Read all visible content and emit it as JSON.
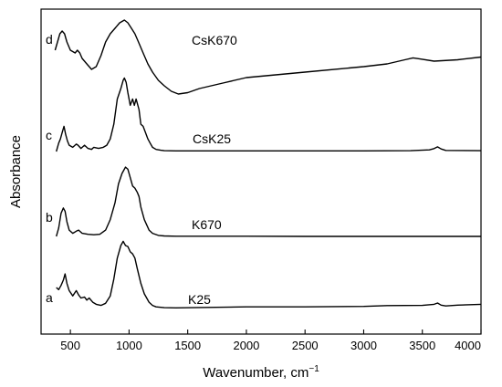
{
  "chart_data": {
    "type": "line",
    "xlabel": "Wavenumber, cm",
    "xlabel_superscript": "−1",
    "ylabel": "Absorbance",
    "xlim": [
      250,
      4000
    ],
    "x_ticks": [
      500,
      1000,
      1500,
      2000,
      2500,
      3000,
      3500,
      4000
    ],
    "y_axis_ticks_shown": false,
    "grid": false,
    "series": [
      {
        "name": "K25",
        "letter": "a",
        "x": [
          380,
          400,
          420,
          440,
          455,
          470,
          490,
          520,
          550,
          570,
          590,
          620,
          640,
          660,
          690,
          720,
          760,
          800,
          840,
          870,
          900,
          930,
          950,
          970,
          990,
          1010,
          1030,
          1050,
          1070,
          1100,
          1130,
          1170,
          1200,
          1230,
          1300,
          1400,
          1600,
          2000,
          2500,
          3000,
          3200,
          3500,
          3600,
          3630,
          3660,
          3700,
          3800,
          4000
        ],
        "y": [
          0.1,
          0.09,
          0.11,
          0.135,
          0.165,
          0.12,
          0.085,
          0.06,
          0.085,
          0.065,
          0.05,
          0.055,
          0.04,
          0.05,
          0.03,
          0.02,
          0.015,
          0.025,
          0.06,
          0.14,
          0.24,
          0.3,
          0.32,
          0.3,
          0.295,
          0.27,
          0.26,
          0.24,
          0.19,
          0.12,
          0.07,
          0.03,
          0.015,
          0.008,
          0.004,
          0.003,
          0.005,
          0.008,
          0.008,
          0.01,
          0.014,
          0.015,
          0.02,
          0.026,
          0.016,
          0.012,
          0.016,
          0.02
        ]
      },
      {
        "name": "K670",
        "letter": "b",
        "x": [
          380,
          400,
          420,
          440,
          455,
          470,
          490,
          520,
          550,
          570,
          600,
          650,
          700,
          750,
          800,
          840,
          880,
          910,
          940,
          970,
          990,
          1010,
          1030,
          1050,
          1070,
          1085,
          1100,
          1130,
          1170,
          1200,
          1250,
          1300,
          1400,
          1600,
          2000,
          2500,
          3000,
          3500,
          3700,
          4000
        ],
        "y": [
          0.0,
          0.04,
          0.11,
          0.135,
          0.12,
          0.07,
          0.03,
          0.015,
          0.025,
          0.03,
          0.015,
          0.01,
          0.008,
          0.01,
          0.03,
          0.08,
          0.16,
          0.25,
          0.3,
          0.33,
          0.32,
          0.28,
          0.24,
          0.23,
          0.21,
          0.19,
          0.14,
          0.08,
          0.03,
          0.015,
          0.005,
          0.002,
          0.001,
          0.001,
          0.001,
          0.0,
          0.0,
          0.0,
          0.0,
          0.0
        ]
      },
      {
        "name": "CsK25",
        "letter": "c",
        "x": [
          380,
          400,
          415,
          430,
          445,
          460,
          475,
          490,
          520,
          550,
          565,
          590,
          620,
          650,
          680,
          700,
          740,
          780,
          810,
          840,
          870,
          900,
          930,
          950,
          960,
          975,
          990,
          1010,
          1030,
          1045,
          1060,
          1070,
          1085,
          1100,
          1120,
          1140,
          1160,
          1180,
          1200,
          1230,
          1270,
          1300,
          1400,
          1600,
          2000,
          2500,
          3000,
          3400,
          3560,
          3600,
          3630,
          3660,
          3700,
          4000
        ],
        "y": [
          0.0,
          0.04,
          0.06,
          0.09,
          0.12,
          0.08,
          0.05,
          0.03,
          0.02,
          0.035,
          0.03,
          0.015,
          0.03,
          0.015,
          0.01,
          0.02,
          0.015,
          0.02,
          0.03,
          0.06,
          0.13,
          0.25,
          0.3,
          0.34,
          0.35,
          0.33,
          0.28,
          0.22,
          0.25,
          0.22,
          0.25,
          0.23,
          0.2,
          0.13,
          0.12,
          0.09,
          0.06,
          0.04,
          0.02,
          0.01,
          0.006,
          0.004,
          0.003,
          0.003,
          0.003,
          0.003,
          0.003,
          0.004,
          0.008,
          0.014,
          0.022,
          0.012,
          0.005,
          0.004
        ]
      },
      {
        "name": "CsK670",
        "letter": "d",
        "x": [
          370,
          390,
          410,
          430,
          450,
          470,
          500,
          540,
          560,
          580,
          600,
          640,
          680,
          720,
          760,
          800,
          840,
          880,
          920,
          960,
          990,
          1020,
          1050,
          1080,
          1120,
          1160,
          1200,
          1250,
          1300,
          1360,
          1420,
          1500,
          1600,
          1800,
          2000,
          2500,
          3000,
          3200,
          3350,
          3420,
          3480,
          3600,
          3800,
          4000
        ],
        "y": [
          0.2,
          0.23,
          0.26,
          0.27,
          0.26,
          0.23,
          0.2,
          0.19,
          0.2,
          0.19,
          0.17,
          0.15,
          0.13,
          0.14,
          0.18,
          0.23,
          0.26,
          0.28,
          0.3,
          0.31,
          0.3,
          0.28,
          0.26,
          0.23,
          0.19,
          0.15,
          0.12,
          0.09,
          0.07,
          0.05,
          0.04,
          0.045,
          0.06,
          0.08,
          0.1,
          0.12,
          0.14,
          0.15,
          0.165,
          0.172,
          0.168,
          0.16,
          0.165,
          0.175
        ]
      }
    ]
  }
}
